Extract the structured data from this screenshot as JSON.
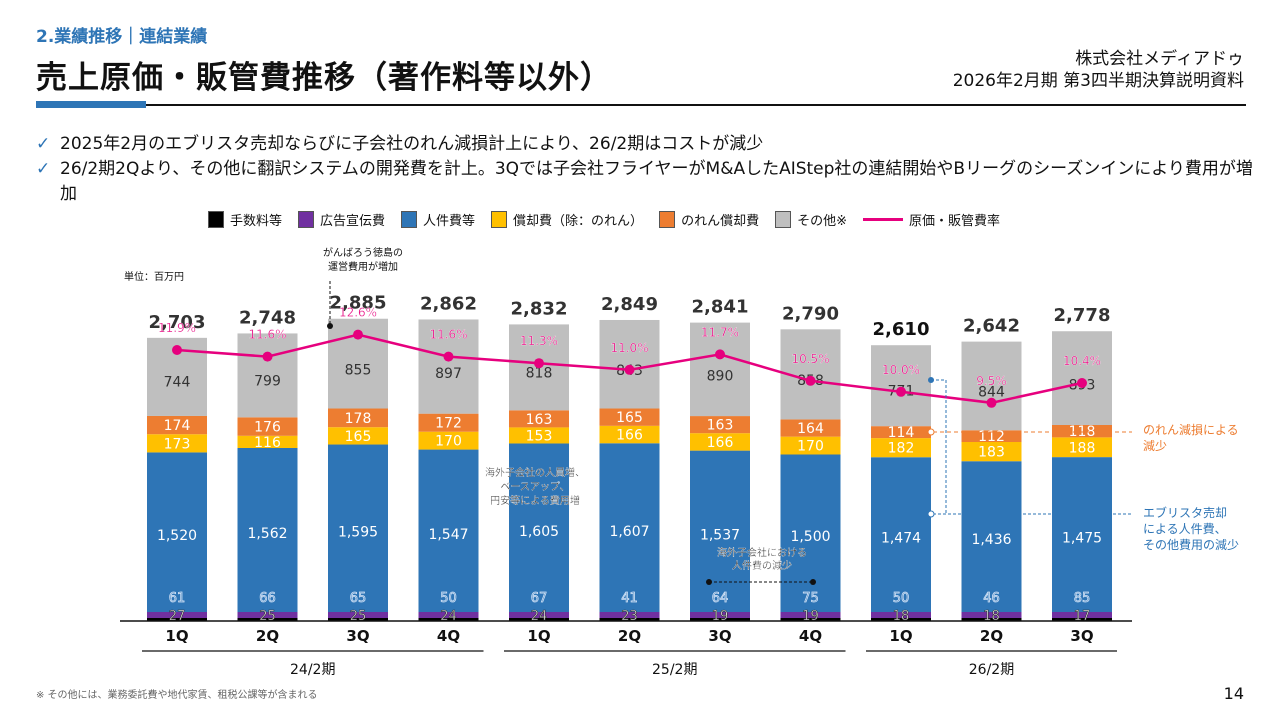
{
  "header": {
    "section": "2.業績推移｜連結業績",
    "title": "売上原価・販管費推移（著作料等以外）",
    "company": "株式会社メディアドゥ",
    "document": "2026年2月期 第3四半期決算説明資料"
  },
  "bullets": [
    "2025年2月のエブリスタ売却ならびに子会社のれん減損計上により、26/2期はコストが減少",
    "26/2期2Qより、その他に翻訳システムの開発費を計上。3Qでは子会社フライヤーがM&AしたAIStep社の連結開始やBリーグのシーズンインにより費用が増加"
  ],
  "bullet_icon": "check-icon",
  "unit_label": "単位：百万円",
  "footnote": "※ その他には、業務委託費や地代家賃、租税公課等が含まれる",
  "page_number": "14",
  "colors": {
    "fees": "#000000",
    "advertising": "#7030a0",
    "personnel": "#2e75b6",
    "depreciation": "#ffc000",
    "goodwill": "#ed7d31",
    "other": "#bfbfbf",
    "ratio": "#e6007e",
    "accent": "#2e75b6"
  },
  "chart_data": {
    "type": "bar",
    "stacked": true,
    "title": "売上原価・販管費推移（著作料等以外）",
    "ylabel": "百万円",
    "categories": [
      "1Q",
      "2Q",
      "3Q",
      "4Q",
      "1Q",
      "2Q",
      "3Q",
      "4Q",
      "1Q",
      "2Q",
      "3Q"
    ],
    "periods": [
      {
        "label": "24/2期",
        "start": 0,
        "end": 3
      },
      {
        "label": "25/2期",
        "start": 4,
        "end": 7
      },
      {
        "label": "26/2期",
        "start": 8,
        "end": 10
      }
    ],
    "series": [
      {
        "key": "fees",
        "name": "手数料等",
        "values": [
          27,
          25,
          25,
          24,
          24,
          23,
          19,
          19,
          18,
          18,
          17
        ]
      },
      {
        "key": "advertising",
        "name": "広告宣伝費",
        "values": [
          61,
          66,
          65,
          50,
          67,
          41,
          64,
          75,
          50,
          46,
          85
        ]
      },
      {
        "key": "personnel",
        "name": "人件費等",
        "values": [
          1520,
          1562,
          1595,
          1547,
          1605,
          1607,
          1537,
          1500,
          1474,
          1436,
          1475
        ]
      },
      {
        "key": "depreciation",
        "name": "償却費（除：のれん）",
        "values": [
          173,
          116,
          165,
          170,
          153,
          166,
          166,
          170,
          182,
          183,
          188
        ]
      },
      {
        "key": "goodwill",
        "name": "のれん償却費",
        "values": [
          174,
          176,
          178,
          172,
          163,
          165,
          163,
          164,
          114,
          112,
          118
        ]
      },
      {
        "key": "other",
        "name": "その他※",
        "values": [
          744,
          799,
          855,
          897,
          818,
          843,
          890,
          858,
          771,
          844,
          893
        ]
      }
    ],
    "totals": [
      2703,
      2748,
      2885,
      2862,
      2832,
      2849,
      2841,
      2790,
      2610,
      2642,
      2778
    ],
    "line_series": {
      "name": "原価・販管費率",
      "values": [
        11.9,
        11.6,
        12.6,
        11.6,
        11.3,
        11.0,
        11.7,
        10.5,
        10.0,
        9.5,
        10.4
      ],
      "unit": "%"
    },
    "annotations": [
      {
        "text": "がんばろう徳島の\n運営費用が増加",
        "target": 2
      },
      {
        "text": "海外子会社の人員増、\nベースアップ、\n円安等による費用増",
        "target": 4
      },
      {
        "text": "海外子会社における\n人件費の減少",
        "target": [
          6,
          7
        ]
      },
      {
        "text": "のれん減損による\n減少",
        "target": 8
      },
      {
        "text": "エブリスタ売却\nによる人件費、\nその他費用の減少",
        "target": 8
      }
    ],
    "legend_position": "top"
  }
}
